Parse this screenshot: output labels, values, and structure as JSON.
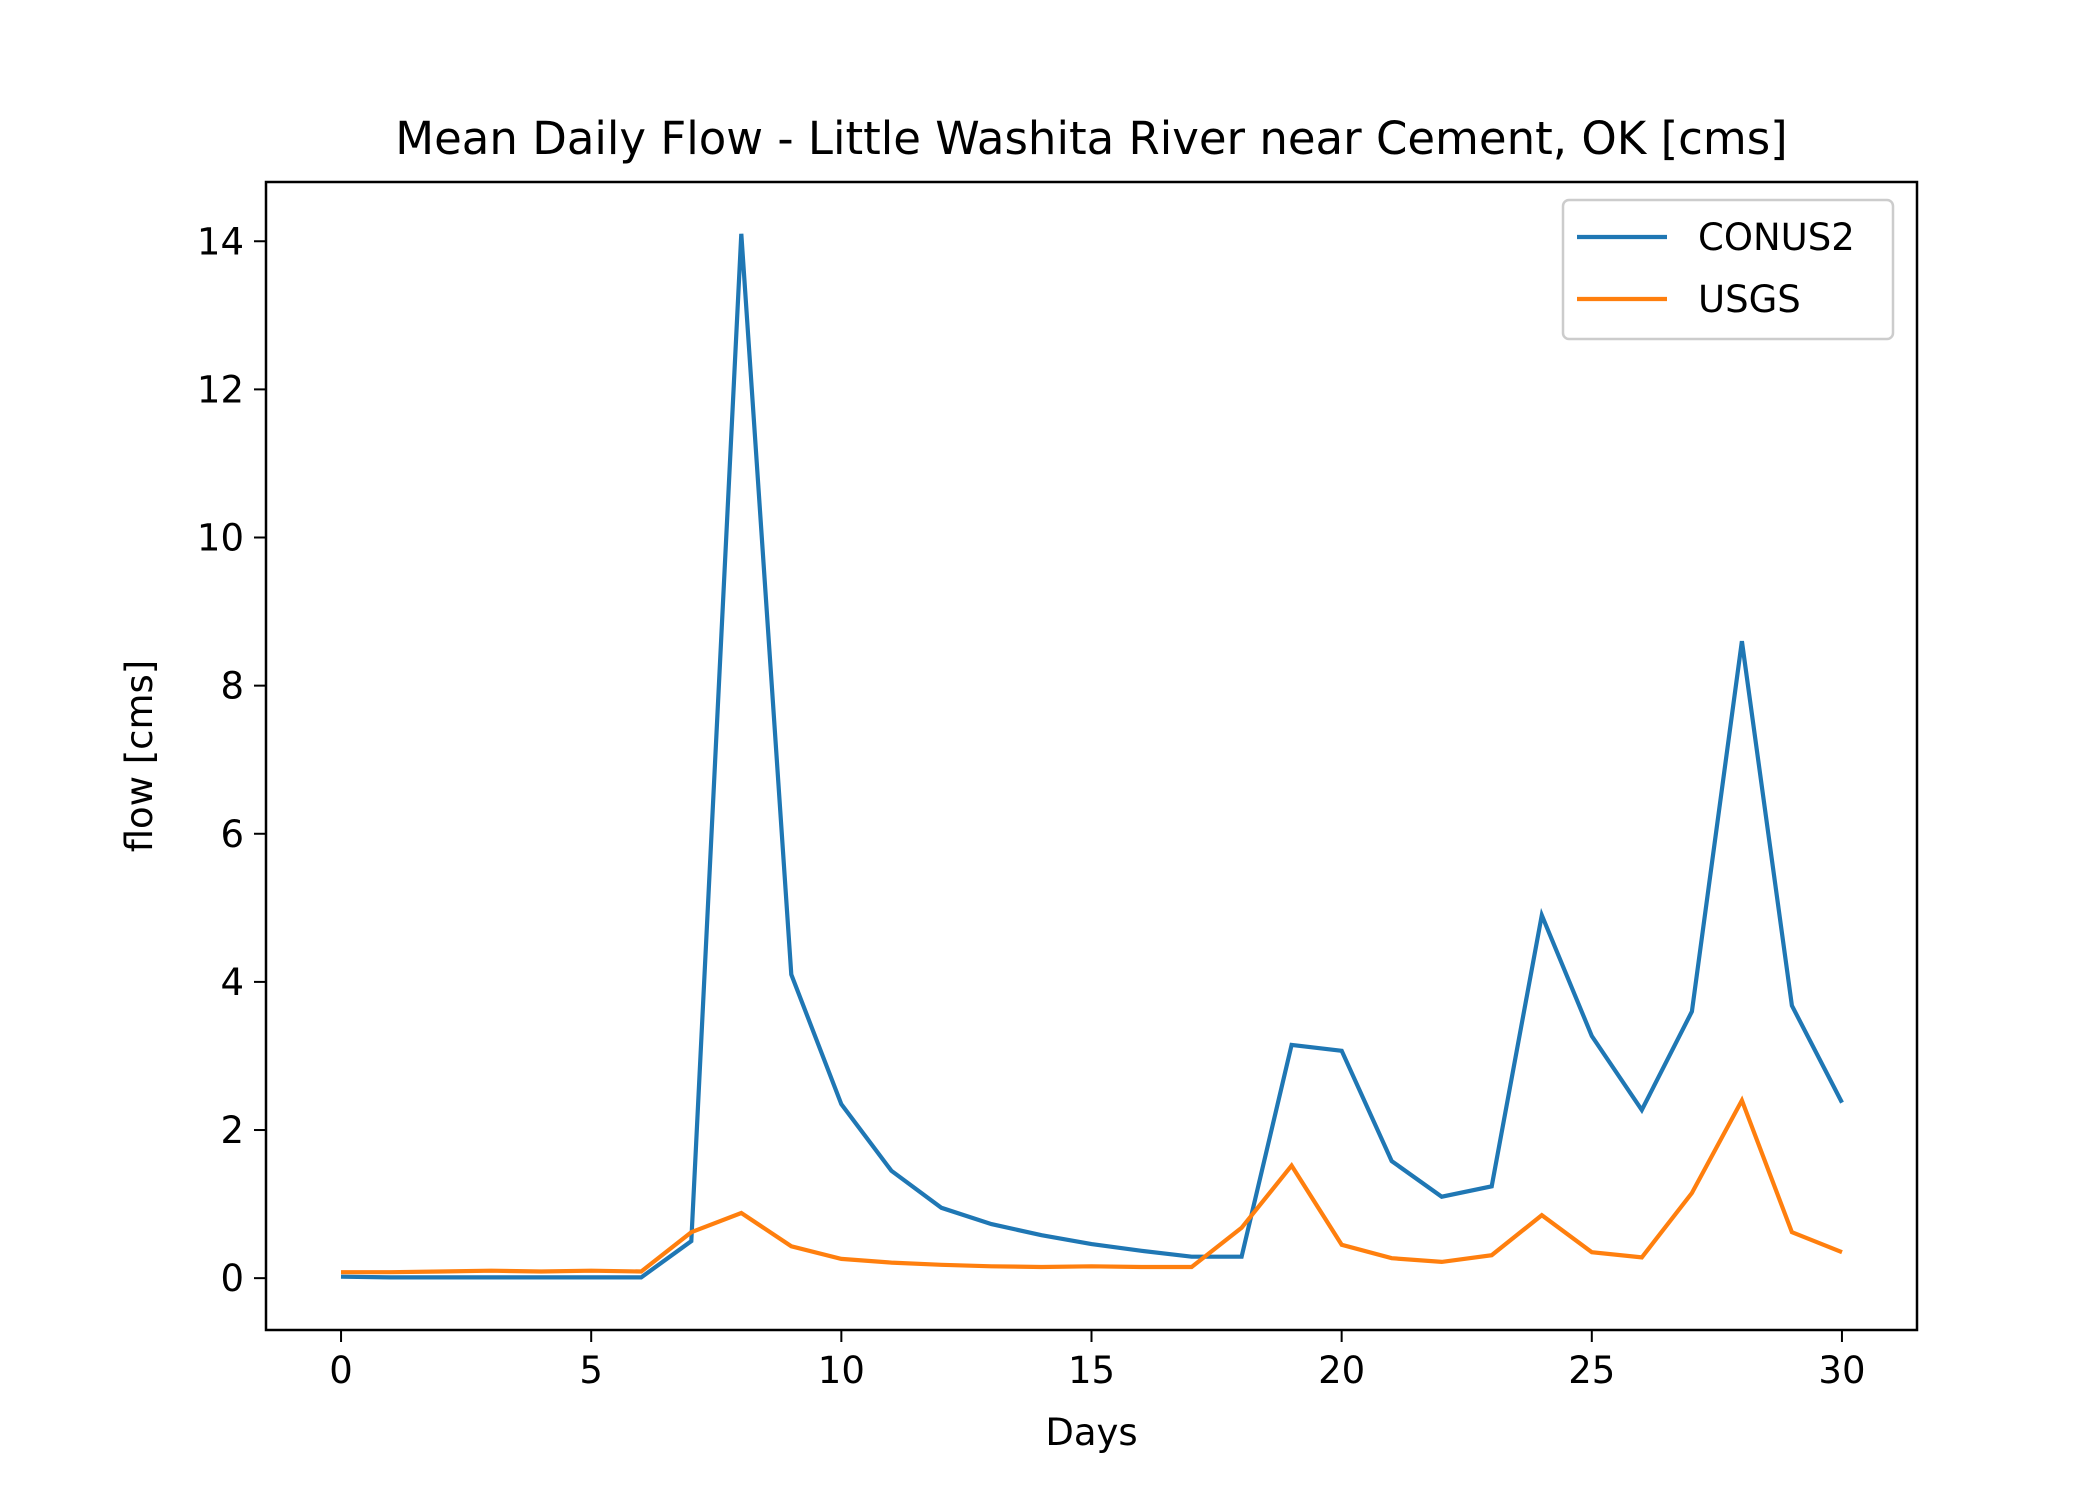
{
  "chart_data": {
    "type": "line",
    "title": "Mean Daily Flow - Little Washita River near Cement, OK [cms]",
    "xlabel": "Days",
    "ylabel": "flow [cms]",
    "xlim": [
      -1.5,
      31.5
    ],
    "ylim": [
      -0.7,
      14.8
    ],
    "xticks": [
      0,
      5,
      10,
      15,
      20,
      25,
      30
    ],
    "yticks": [
      0,
      2,
      4,
      6,
      8,
      10,
      12,
      14
    ],
    "grid": false,
    "legend_position": "top-right",
    "x": [
      0,
      1,
      2,
      3,
      4,
      5,
      6,
      7,
      8,
      9,
      10,
      11,
      12,
      13,
      14,
      15,
      16,
      17,
      18,
      19,
      20,
      21,
      22,
      23,
      24,
      25,
      26,
      27,
      28,
      29,
      30
    ],
    "series": [
      {
        "name": "CONUS2",
        "color": "#1f77b4",
        "values": [
          0.02,
          0.01,
          0.01,
          0.01,
          0.01,
          0.01,
          0.01,
          0.5,
          14.1,
          4.1,
          2.35,
          1.45,
          0.95,
          0.73,
          0.58,
          0.46,
          0.37,
          0.29,
          0.29,
          3.15,
          3.07,
          1.58,
          1.1,
          1.24,
          4.9,
          3.27,
          2.27,
          3.6,
          8.6,
          3.68,
          2.37
        ]
      },
      {
        "name": "USGS",
        "color": "#ff7f0e",
        "values": [
          0.08,
          0.08,
          0.09,
          0.1,
          0.09,
          0.1,
          0.09,
          0.62,
          0.88,
          0.43,
          0.26,
          0.21,
          0.18,
          0.16,
          0.15,
          0.16,
          0.15,
          0.15,
          0.68,
          1.52,
          0.45,
          0.27,
          0.22,
          0.31,
          0.85,
          0.35,
          0.28,
          1.15,
          2.4,
          0.62,
          0.35
        ]
      }
    ]
  }
}
